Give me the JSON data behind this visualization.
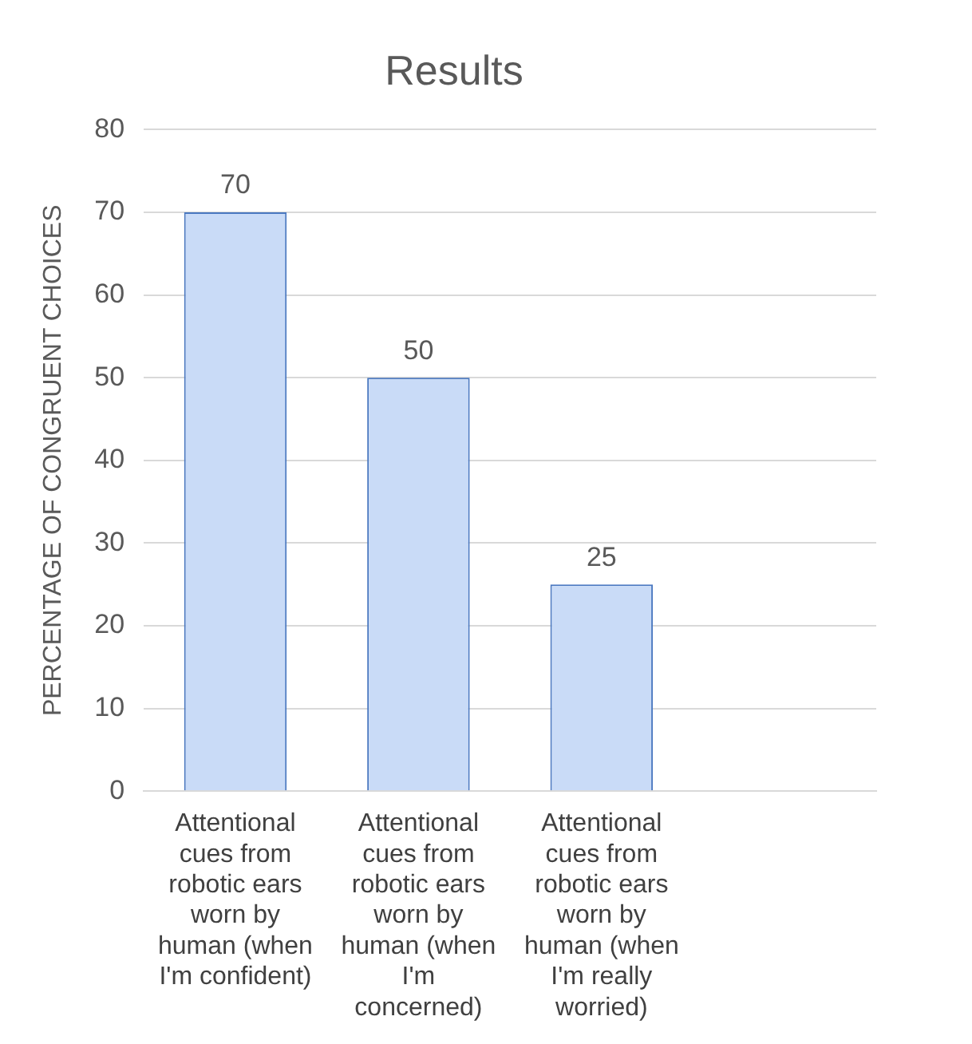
{
  "chart_data": {
    "type": "bar",
    "title": "Results",
    "ylabel": "PERCENTAGE OF CONGRUENT CHOICES",
    "categories": [
      "Attentional cues from robotic ears worn by human (when I'm confident)",
      "Attentional cues from robotic ears worn by human (when I'm concerned)",
      "Attentional cues from robotic ears worn by human (when I'm really worried)",
      null
    ],
    "values": [
      70,
      50,
      25,
      null
    ],
    "color": "#c9dbf7",
    "ylim": [
      0,
      80
    ],
    "yticks": [
      0,
      10,
      20,
      30,
      40,
      50,
      60,
      70,
      80
    ],
    "grid": "y",
    "data_labels": true,
    "legend": false
  }
}
